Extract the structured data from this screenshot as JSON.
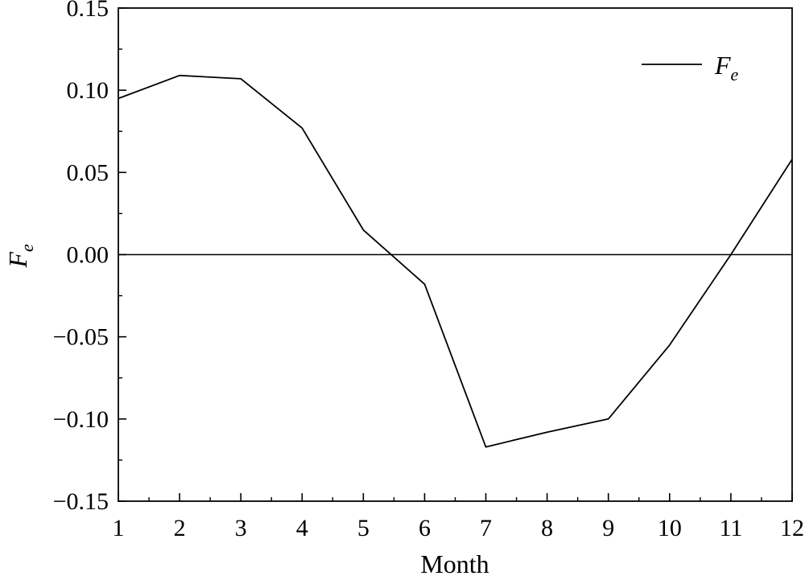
{
  "chart_data": {
    "type": "line",
    "xlabel": "Month",
    "ylabel": "F",
    "ylabel_subscript": "e",
    "xlim": [
      1,
      12
    ],
    "ylim": [
      -0.15,
      0.15
    ],
    "xticks": [
      "1",
      "2",
      "3",
      "4",
      "5",
      "6",
      "7",
      "8",
      "9",
      "10",
      "11",
      "12"
    ],
    "yticks": [
      "0.15",
      "0.10",
      "0.05",
      "0.00",
      "−0.05",
      "−0.10",
      "−0.15"
    ],
    "ytick_values": [
      0.15,
      0.1,
      0.05,
      0.0,
      -0.05,
      -0.1,
      -0.15
    ],
    "reference_line_y": 0.0,
    "grid": false,
    "legend_position": "top-right",
    "series": [
      {
        "name": "F",
        "name_subscript": "e",
        "color": "#000000",
        "x": [
          1,
          2,
          3,
          4,
          5,
          6,
          7,
          8,
          9,
          10,
          11,
          12
        ],
        "values": [
          0.095,
          0.109,
          0.107,
          0.077,
          0.015,
          -0.018,
          -0.117,
          -0.108,
          -0.1,
          -0.055,
          0.0,
          0.058
        ]
      }
    ]
  }
}
